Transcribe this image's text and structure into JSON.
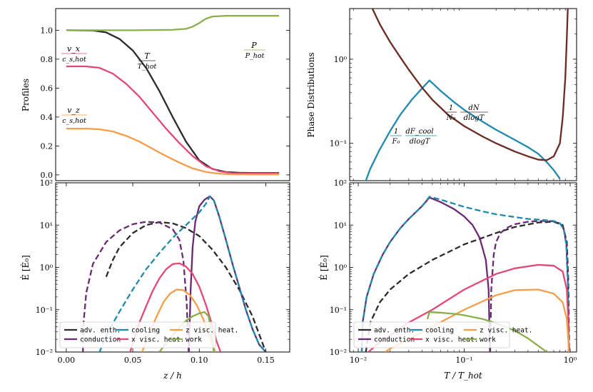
{
  "colors": {
    "adv": "#2b2b2b",
    "conduction": "#6a2a73",
    "cooling": "#1f8aad",
    "xvisc": "#e24875",
    "zvisc": "#f59d4a",
    "work": "#88b04b",
    "dndlogt": "#6b2b22"
  },
  "chart_data": [
    {
      "panel": "top-left",
      "type": "line",
      "ylabel": "Profiles",
      "xlim": [
        -0.008,
        0.168
      ],
      "ylim": [
        -0.04,
        1.15
      ],
      "yticks": [
        "0.0",
        "0.2",
        "0.4",
        "0.6",
        "0.8",
        "1.0"
      ],
      "annotations": {
        "T": {
          "num": "T",
          "den": "T_hot"
        },
        "vx": {
          "num": "v_x",
          "den": "c_s,hot"
        },
        "vz": {
          "num": "v_z",
          "den": "c_s,hot"
        },
        "P": {
          "num": "P",
          "den": "P_hot"
        }
      },
      "series": [
        {
          "key": "T",
          "color_key": "adv",
          "x": [
            0.0,
            0.02,
            0.03,
            0.04,
            0.05,
            0.06,
            0.07,
            0.08,
            0.09,
            0.1,
            0.11,
            0.12,
            0.13,
            0.14,
            0.16
          ],
          "y": [
            1.0,
            0.998,
            0.985,
            0.94,
            0.86,
            0.74,
            0.58,
            0.4,
            0.23,
            0.1,
            0.04,
            0.02,
            0.015,
            0.013,
            0.013
          ]
        },
        {
          "key": "vx",
          "color_key": "xvisc",
          "x": [
            0.0,
            0.015,
            0.025,
            0.035,
            0.045,
            0.055,
            0.065,
            0.075,
            0.085,
            0.095,
            0.105,
            0.115,
            0.125,
            0.14,
            0.16
          ],
          "y": [
            0.75,
            0.75,
            0.74,
            0.7,
            0.63,
            0.54,
            0.43,
            0.32,
            0.22,
            0.13,
            0.06,
            0.025,
            0.012,
            0.01,
            0.01
          ]
        },
        {
          "key": "vz",
          "color_key": "zvisc",
          "x": [
            0.0,
            0.015,
            0.025,
            0.035,
            0.045,
            0.055,
            0.065,
            0.075,
            0.085,
            0.095,
            0.105,
            0.115,
            0.125,
            0.14,
            0.16
          ],
          "y": [
            0.32,
            0.32,
            0.315,
            0.3,
            0.27,
            0.23,
            0.18,
            0.13,
            0.085,
            0.045,
            0.02,
            0.008,
            0.004,
            0.003,
            0.003
          ]
        },
        {
          "key": "P",
          "color_key": "work",
          "x": [
            0.0,
            0.05,
            0.08,
            0.09,
            0.095,
            0.1,
            0.105,
            0.11,
            0.12,
            0.16
          ],
          "y": [
            1.0,
            1.0,
            1.003,
            1.01,
            1.025,
            1.05,
            1.08,
            1.095,
            1.1,
            1.1
          ]
        }
      ]
    },
    {
      "panel": "top-right",
      "type": "line",
      "ylabel": "Phase Distributions",
      "xscale": "log",
      "yscale": "log",
      "xlim": [
        0.0083,
        1.15
      ],
      "ylim": [
        0.036,
        4.0
      ],
      "yticks": [
        {
          "v": 0.1,
          "t": "10⁻¹"
        },
        {
          "v": 1,
          "t": "10⁰"
        }
      ],
      "annotations": {
        "cool": {
          "pre": "1",
          "pre_den": "F₀",
          "num": "dF_cool",
          "den": "dlogT"
        },
        "dndlogt": {
          "pre": "1",
          "pre_den": "N₀",
          "num": "dN",
          "den": "dlogT"
        }
      },
      "series": [
        {
          "key": "cool",
          "color_key": "cooling",
          "x": [
            0.0118,
            0.013,
            0.016,
            0.02,
            0.025,
            0.032,
            0.04,
            0.047,
            0.06,
            0.08,
            0.1,
            0.15,
            0.2,
            0.3,
            0.4,
            0.5,
            0.6,
            0.7,
            0.8
          ],
          "y": [
            0.036,
            0.05,
            0.085,
            0.14,
            0.22,
            0.33,
            0.45,
            0.56,
            0.42,
            0.31,
            0.25,
            0.18,
            0.145,
            0.11,
            0.09,
            0.075,
            0.06,
            0.048,
            0.038
          ]
        },
        {
          "key": "dndlogt",
          "color_key": "dndlogt",
          "x": [
            0.0136,
            0.016,
            0.02,
            0.025,
            0.03,
            0.04,
            0.05,
            0.07,
            0.1,
            0.15,
            0.2,
            0.3,
            0.4,
            0.5,
            0.6,
            0.7,
            0.8,
            0.85,
            0.9,
            0.93,
            0.95
          ],
          "y": [
            4.0,
            2.6,
            1.6,
            1.05,
            0.75,
            0.46,
            0.33,
            0.22,
            0.16,
            0.12,
            0.1,
            0.08,
            0.07,
            0.064,
            0.063,
            0.07,
            0.1,
            0.2,
            0.6,
            1.8,
            4.0
          ]
        }
      ]
    },
    {
      "panel": "bottom-left",
      "type": "line",
      "xlabel": "z / h",
      "ylabel": "Ė [Ė₀]",
      "yscale": "log",
      "xlim": [
        -0.008,
        0.168
      ],
      "ylim": [
        0.01,
        100
      ],
      "xticks": [
        "0.00",
        "0.05",
        "0.10",
        "0.15"
      ],
      "yticks": [
        {
          "v": 0.01,
          "t": "10⁻²"
        },
        {
          "v": 0.1,
          "t": "10⁻¹"
        },
        {
          "v": 1,
          "t": "10⁰"
        },
        {
          "v": 10,
          "t": "10¹"
        },
        {
          "v": 100,
          "t": "10²"
        }
      ],
      "legend_position": "lower-left",
      "series": [
        {
          "name": "adv. enth.",
          "color_key": "adv",
          "dash": true,
          "x": [
            0.03,
            0.035,
            0.04,
            0.05,
            0.06,
            0.07,
            0.08,
            0.09,
            0.1,
            0.11,
            0.12,
            0.13,
            0.14,
            0.15
          ],
          "y": [
            0.6,
            1.5,
            3.0,
            6.5,
            10.0,
            11.8,
            11.0,
            8.5,
            5.5,
            2.6,
            1.0,
            0.3,
            0.07,
            0.01
          ]
        },
        {
          "name": "conduction",
          "color_key": "conduction",
          "dash": true,
          "x": [
            0.0125,
            0.013,
            0.015,
            0.02,
            0.03,
            0.04,
            0.05,
            0.06,
            0.07,
            0.08,
            0.085,
            0.088,
            0.0905,
            0.092
          ],
          "y": [
            0.01,
            0.05,
            0.25,
            1.2,
            4.0,
            7.5,
            10.5,
            12.0,
            11.5,
            8.0,
            4.5,
            1.5,
            0.15,
            0.01
          ]
        },
        {
          "name": "conduction",
          "color_key": "conduction",
          "dash": false,
          "x": [
            0.0922,
            0.0935,
            0.095,
            0.097,
            0.1,
            0.104,
            0.108,
            0.111,
            0.115,
            0.12,
            0.125,
            0.13,
            0.135,
            0.14,
            0.145,
            0.15
          ],
          "y": [
            0.01,
            0.3,
            3.0,
            12.0,
            28.0,
            40.0,
            48.0,
            38.0,
            16.0,
            4.5,
            1.2,
            0.35,
            0.1,
            0.035,
            0.015,
            0.01
          ]
        },
        {
          "name": "cooling",
          "color_key": "cooling",
          "dash": true,
          "x": [
            0.025,
            0.03,
            0.04,
            0.05,
            0.06,
            0.07,
            0.08,
            0.09,
            0.1,
            0.105,
            0.108,
            0.111,
            0.115,
            0.12,
            0.125,
            0.13,
            0.135,
            0.14,
            0.145,
            0.15
          ],
          "y": [
            0.01,
            0.025,
            0.09,
            0.3,
            0.9,
            2.2,
            5.0,
            10.0,
            20.0,
            32.0,
            48.0,
            38.0,
            16.0,
            4.5,
            1.2,
            0.35,
            0.1,
            0.035,
            0.015,
            0.01
          ]
        },
        {
          "name": "x visc. heat.",
          "color_key": "xvisc",
          "dash": false,
          "x": [
            0.048,
            0.055,
            0.06,
            0.065,
            0.07,
            0.075,
            0.08,
            0.085,
            0.09,
            0.095,
            0.1,
            0.105,
            0.11,
            0.113,
            0.116
          ],
          "y": [
            0.01,
            0.05,
            0.12,
            0.28,
            0.55,
            0.9,
            1.2,
            1.25,
            1.05,
            0.7,
            0.35,
            0.13,
            0.04,
            0.018,
            0.01
          ]
        },
        {
          "name": "z visc. heat.",
          "color_key": "zvisc",
          "dash": false,
          "x": [
            0.057,
            0.063,
            0.068,
            0.073,
            0.078,
            0.083,
            0.088,
            0.093,
            0.098,
            0.103,
            0.108,
            0.112
          ],
          "y": [
            0.01,
            0.03,
            0.07,
            0.15,
            0.24,
            0.3,
            0.29,
            0.22,
            0.13,
            0.06,
            0.022,
            0.01
          ]
        },
        {
          "name": "work",
          "color_key": "work",
          "dash": false,
          "x": [
            0.07,
            0.075,
            0.08,
            0.085,
            0.09,
            0.095,
            0.1,
            0.104,
            0.107,
            0.109,
            0.111
          ],
          "y": [
            0.01,
            0.016,
            0.025,
            0.038,
            0.055,
            0.07,
            0.082,
            0.088,
            0.07,
            0.03,
            0.01
          ]
        }
      ],
      "legend": [
        {
          "label": "adv. enth.",
          "color_key": "adv"
        },
        {
          "label": "conduction",
          "color_key": "conduction"
        },
        {
          "label": "cooling",
          "color_key": "cooling"
        },
        {
          "label": "x visc. heat.",
          "color_key": "xvisc"
        },
        {
          "label": "z visc. heat.",
          "color_key": "zvisc"
        },
        {
          "label": "work",
          "color_key": "work"
        }
      ]
    },
    {
      "panel": "bottom-right",
      "type": "line",
      "xlabel": "T / T_hot",
      "ylabel": "Ė [Ė₀]",
      "xscale": "log",
      "yscale": "log",
      "xlim": [
        0.0083,
        1.15
      ],
      "ylim": [
        0.01,
        100
      ],
      "xticks": [
        {
          "v": 0.01,
          "t": "10⁻²"
        },
        {
          "v": 0.1,
          "t": "10⁻¹"
        },
        {
          "v": 1,
          "t": "10⁰"
        }
      ],
      "yticks": [
        {
          "v": 0.01,
          "t": "10⁻²"
        },
        {
          "v": 0.1,
          "t": "10⁻¹"
        },
        {
          "v": 1,
          "t": "10⁰"
        },
        {
          "v": 10,
          "t": "10¹"
        },
        {
          "v": 100,
          "t": "10²"
        }
      ],
      "legend_position": "lower-left",
      "series": [
        {
          "name": "adv. enth.",
          "color_key": "adv",
          "dash": true,
          "x": [
            0.0118,
            0.013,
            0.016,
            0.02,
            0.03,
            0.05,
            0.1,
            0.2,
            0.3,
            0.5,
            0.7,
            0.85,
            0.93,
            0.96,
            0.98
          ],
          "y": [
            0.01,
            0.05,
            0.15,
            0.3,
            0.7,
            1.5,
            3.5,
            6.5,
            9.0,
            11.5,
            12.0,
            10.0,
            4.0,
            0.5,
            0.01
          ]
        },
        {
          "name": "conduction",
          "color_key": "conduction",
          "dash": true,
          "x": [
            0.176,
            0.18,
            0.19,
            0.2,
            0.22,
            0.25,
            0.3,
            0.4,
            0.5,
            0.6,
            0.7,
            0.8,
            0.87,
            0.92,
            0.95,
            0.97
          ],
          "y": [
            0.01,
            0.3,
            2.0,
            4.0,
            6.5,
            8.5,
            10.5,
            12.0,
            12.5,
            12.5,
            12.2,
            11.0,
            8.0,
            3.5,
            0.5,
            0.01
          ]
        },
        {
          "name": "conduction",
          "color_key": "conduction",
          "dash": false,
          "x": [
            0.0108,
            0.011,
            0.012,
            0.014,
            0.017,
            0.02,
            0.025,
            0.03,
            0.04,
            0.047,
            0.06,
            0.08,
            0.1,
            0.12,
            0.14,
            0.16,
            0.17,
            0.175
          ],
          "y": [
            0.01,
            0.05,
            0.2,
            0.7,
            2.0,
            4.0,
            8.5,
            14.0,
            28.0,
            45.0,
            35.0,
            24.0,
            16.0,
            10.0,
            5.0,
            1.5,
            0.3,
            0.01
          ]
        },
        {
          "name": "cooling",
          "color_key": "cooling",
          "dash": true,
          "x": [
            0.0108,
            0.011,
            0.012,
            0.014,
            0.017,
            0.02,
            0.025,
            0.03,
            0.04,
            0.047,
            0.06,
            0.08,
            0.1,
            0.15,
            0.2,
            0.3,
            0.4,
            0.5,
            0.6,
            0.7,
            0.8,
            0.87,
            0.92,
            0.95,
            0.97
          ],
          "y": [
            0.01,
            0.05,
            0.2,
            0.7,
            2.0,
            4.0,
            8.5,
            14.0,
            28.0,
            47.0,
            40.0,
            32.0,
            27.0,
            21.0,
            18.0,
            15.5,
            14.0,
            13.5,
            13.0,
            12.5,
            11.0,
            8.0,
            3.5,
            0.5,
            0.01
          ]
        },
        {
          "name": "x visc. heat.",
          "color_key": "xvisc",
          "dash": false,
          "x": [
            0.0125,
            0.015,
            0.02,
            0.03,
            0.05,
            0.1,
            0.2,
            0.3,
            0.5,
            0.7,
            0.85,
            0.93,
            0.96,
            0.975
          ],
          "y": [
            0.01,
            0.015,
            0.025,
            0.05,
            0.1,
            0.3,
            0.7,
            0.95,
            1.15,
            1.1,
            0.8,
            0.3,
            0.06,
            0.01
          ]
        },
        {
          "name": "z visc. heat.",
          "color_key": "zvisc",
          "dash": false,
          "x": [
            0.018,
            0.02,
            0.025,
            0.03,
            0.05,
            0.1,
            0.2,
            0.3,
            0.5,
            0.7,
            0.85,
            0.93,
            0.96,
            0.975
          ],
          "y": [
            0.01,
            0.012,
            0.016,
            0.02,
            0.04,
            0.1,
            0.22,
            0.29,
            0.3,
            0.24,
            0.15,
            0.06,
            0.02,
            0.01
          ]
        },
        {
          "name": "work",
          "color_key": "work",
          "dash": false,
          "x": [
            0.045,
            0.047,
            0.06,
            0.08,
            0.1,
            0.15,
            0.2,
            0.3,
            0.4,
            0.5,
            0.6
          ],
          "y": [
            0.06,
            0.088,
            0.085,
            0.08,
            0.074,
            0.06,
            0.048,
            0.032,
            0.021,
            0.014,
            0.01
          ]
        }
      ],
      "legend": [
        {
          "label": "adv. enth.",
          "color_key": "adv"
        },
        {
          "label": "conduction",
          "color_key": "conduction"
        },
        {
          "label": "cooling",
          "color_key": "cooling"
        },
        {
          "label": "x visc. heat.",
          "color_key": "xvisc"
        },
        {
          "label": "z visc. heat.",
          "color_key": "zvisc"
        },
        {
          "label": "work",
          "color_key": "work"
        }
      ]
    }
  ]
}
